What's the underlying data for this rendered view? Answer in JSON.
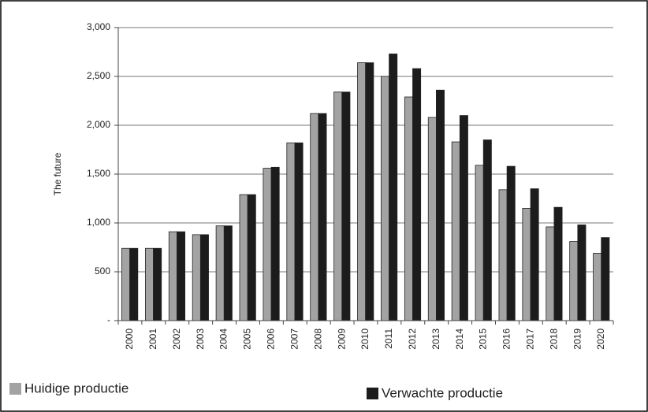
{
  "chart_data": {
    "type": "bar",
    "y_label": "The future",
    "categories": [
      "2000",
      "2001",
      "2002",
      "2003",
      "2004",
      "2005",
      "2006",
      "2007",
      "2008",
      "2009",
      "2010",
      "2011",
      "2012",
      "2013",
      "2014",
      "2015",
      "2016",
      "2017",
      "2018",
      "2019",
      "2020"
    ],
    "series": [
      {
        "name": "Huidige productie",
        "color": "#a3a3a3",
        "values": [
          740,
          740,
          910,
          880,
          970,
          1290,
          1560,
          1820,
          2120,
          2340,
          2640,
          2500,
          2290,
          2080,
          1830,
          1590,
          1340,
          1150,
          960,
          810,
          690
        ]
      },
      {
        "name": "Verwachte productie",
        "color": "#1c1c1c",
        "values": [
          740,
          740,
          910,
          880,
          970,
          1290,
          1570,
          1820,
          2120,
          2340,
          2640,
          2730,
          2580,
          2360,
          2100,
          1850,
          1580,
          1350,
          1160,
          980,
          850
        ]
      }
    ],
    "ylim": [
      0,
      3000
    ],
    "yticks": [
      {
        "value": 0,
        "label": "-"
      },
      500,
      {
        "value": 1000,
        "label": "1,000"
      },
      {
        "value": 1500,
        "label": "1,500"
      },
      {
        "value": 2000,
        "label": "2,000"
      },
      {
        "value": 2500,
        "label": "2,500"
      },
      {
        "value": 3000,
        "label": "3,000"
      }
    ],
    "grid": true
  }
}
